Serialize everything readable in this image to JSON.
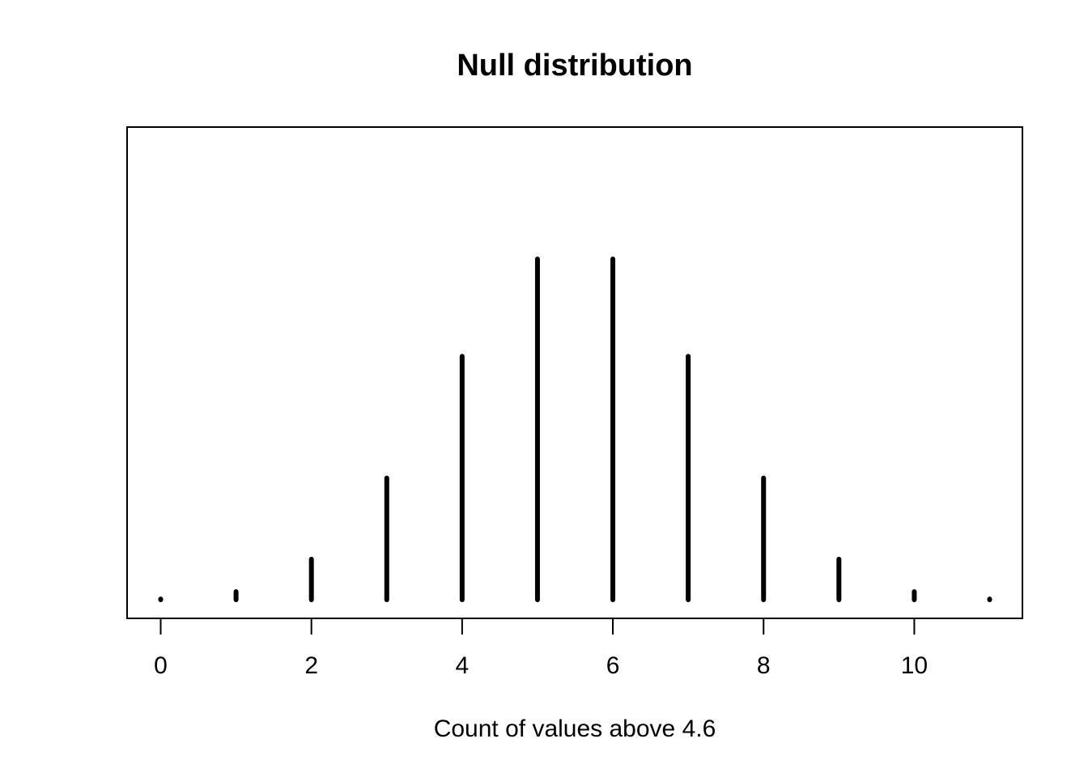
{
  "chart_data": {
    "type": "bar",
    "title": "Null distribution",
    "xlabel": "Count of values above 4.6",
    "ylabel": "",
    "x": [
      0,
      1,
      2,
      3,
      4,
      5,
      6,
      7,
      8,
      9,
      10,
      11
    ],
    "values": [
      1,
      11,
      55,
      165,
      330,
      462,
      462,
      330,
      165,
      55,
      11,
      1
    ],
    "xticks": [
      0,
      2,
      4,
      6,
      8,
      10
    ],
    "xlim": [
      -0.45,
      11.45
    ],
    "ylim": [
      0,
      480
    ],
    "yaxis_shown": false,
    "grid": false,
    "legend": "none",
    "spike_color": "#000000"
  }
}
